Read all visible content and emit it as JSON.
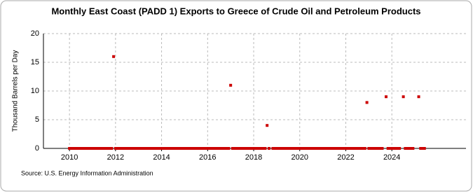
{
  "chart_data": {
    "type": "scatter",
    "title": "Monthly East Coast (PADD 1) Exports to Greece of Crude Oil and Petroleum Products",
    "y_label": "Thousand Barrels per Day",
    "source": "Source: U.S. Energy Information Administration",
    "color": "#cc0000",
    "xlim": [
      2008.87,
      2027.22
    ],
    "xticks": [
      2010,
      2012,
      2014,
      2016,
      2018,
      2020,
      2022,
      2024
    ],
    "ylim": [
      0,
      20
    ],
    "yticks": [
      0,
      5,
      10,
      15,
      20
    ],
    "grid": true,
    "x": [
      2010,
      2010.083,
      2010.167,
      2010.25,
      2010.333,
      2010.417,
      2010.5,
      2010.583,
      2010.667,
      2010.75,
      2010.833,
      2010.917,
      2011,
      2011.083,
      2011.167,
      2011.25,
      2011.333,
      2011.417,
      2011.5,
      2011.583,
      2011.667,
      2011.75,
      2011.833,
      2011.917,
      2012,
      2012.083,
      2012.167,
      2012.25,
      2012.333,
      2012.417,
      2012.5,
      2012.583,
      2012.667,
      2012.75,
      2012.833,
      2012.917,
      2013,
      2013.083,
      2013.167,
      2013.25,
      2013.333,
      2013.417,
      2013.5,
      2013.583,
      2013.667,
      2013.75,
      2013.833,
      2013.917,
      2014,
      2014.083,
      2014.167,
      2014.25,
      2014.333,
      2014.417,
      2014.5,
      2014.583,
      2014.667,
      2014.75,
      2014.833,
      2014.917,
      2015,
      2015.083,
      2015.167,
      2015.25,
      2015.333,
      2015.417,
      2015.5,
      2015.583,
      2015.667,
      2015.75,
      2015.833,
      2015.917,
      2016,
      2016.083,
      2016.167,
      2016.25,
      2016.333,
      2016.417,
      2016.5,
      2016.583,
      2016.667,
      2016.75,
      2016.833,
      2016.917,
      2017,
      2017.083,
      2017.167,
      2017.25,
      2017.333,
      2017.417,
      2017.5,
      2017.583,
      2017.667,
      2017.75,
      2017.833,
      2017.917,
      2018,
      2018.083,
      2018.167,
      2018.25,
      2018.333,
      2018.417,
      2018.5,
      2018.583,
      2018.667,
      2018.75,
      2018.833,
      2018.917,
      2019,
      2019.083,
      2019.167,
      2019.25,
      2019.333,
      2019.417,
      2019.5,
      2019.583,
      2019.667,
      2019.75,
      2019.833,
      2019.917,
      2020,
      2020.083,
      2020.167,
      2020.25,
      2020.333,
      2020.417,
      2020.5,
      2020.583,
      2020.667,
      2020.75,
      2020.833,
      2020.917,
      2021,
      2021.083,
      2021.167,
      2021.25,
      2021.333,
      2021.417,
      2021.5,
      2021.583,
      2021.667,
      2021.75,
      2021.833,
      2021.917,
      2022,
      2022.083,
      2022.167,
      2022.25,
      2022.333,
      2022.417,
      2022.5,
      2022.583,
      2022.667,
      2022.75,
      2022.833,
      2022.917,
      2023,
      2023.083,
      2023.167,
      2023.25,
      2023.333,
      2023.417,
      2023.5,
      2023.583,
      2023.667,
      2023.75,
      2023.833,
      2023.917,
      2024,
      2024.083,
      2024.167,
      2024.25,
      2024.333,
      2024.417,
      2024.5,
      2024.583,
      2024.667,
      2024.75,
      2024.833,
      2024.917,
      2025,
      2025.083,
      2025.167,
      2025.25,
      2025.333,
      2025.417
    ],
    "values": [
      0,
      0,
      0,
      0,
      0,
      0,
      0,
      0,
      0,
      0,
      0,
      0,
      0,
      0,
      0,
      0,
      0,
      0,
      0,
      0,
      0,
      0,
      0,
      16,
      0,
      0,
      0,
      0,
      0,
      0,
      0,
      0,
      0,
      0,
      0,
      0,
      0,
      0,
      0,
      0,
      0,
      0,
      0,
      0,
      0,
      0,
      0,
      0,
      0,
      0,
      0,
      0,
      0,
      0,
      0,
      0,
      0,
      0,
      0,
      0,
      0,
      0,
      0,
      0,
      0,
      0,
      0,
      0,
      0,
      0,
      0,
      0,
      0,
      0,
      0,
      0,
      0,
      0,
      0,
      0,
      0,
      0,
      0,
      0,
      11,
      0,
      0,
      0,
      0,
      0,
      0,
      0,
      0,
      0,
      0,
      0,
      0,
      0,
      0,
      0,
      0,
      0,
      0,
      4,
      0,
      null,
      0,
      0,
      0,
      0,
      0,
      0,
      0,
      0,
      0,
      0,
      0,
      0,
      0,
      0,
      0,
      0,
      0,
      0,
      0,
      0,
      0,
      0,
      0,
      0,
      0,
      0,
      0,
      0,
      0,
      0,
      0,
      0,
      0,
      0,
      0,
      0,
      0,
      0,
      0,
      0,
      0,
      0,
      0,
      0,
      0,
      0,
      0,
      0,
      0,
      8,
      0,
      0,
      0,
      0,
      0,
      0,
      0,
      0,
      null,
      9,
      0,
      0,
      0,
      0,
      0,
      0,
      0,
      null,
      9,
      0,
      0,
      0,
      0,
      0,
      null,
      null,
      9,
      0,
      0,
      0
    ]
  }
}
